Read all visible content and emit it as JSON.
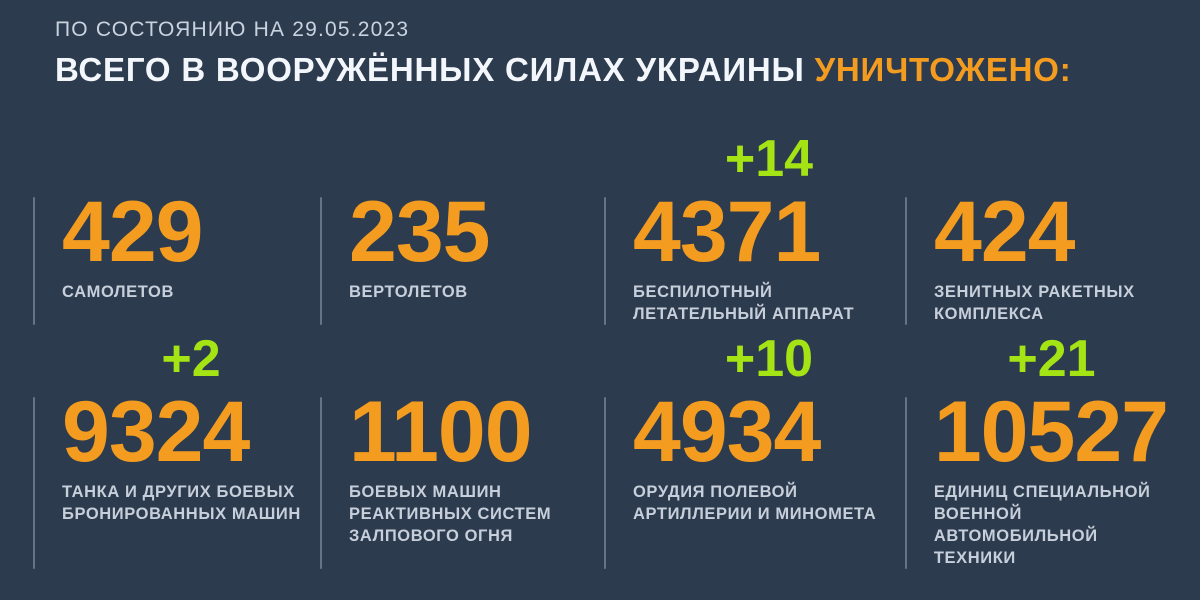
{
  "chart_data": {
    "type": "table",
    "title": "ВСЕГО В ВООРУЖЁННЫХ СИЛАХ УКРАИНЫ УНИЧТОЖЕНО:",
    "as_of_date": "29.05.2023",
    "categories": [
      "САМОЛЕТОВ",
      "ВЕРТОЛЕТОВ",
      "БЕСПИЛОТНЫЙ ЛЕТАТЕЛЬНЫЙ АППАРАТ",
      "ЗЕНИТНЫХ РАКЕТНЫХ КОМПЛЕКСА",
      "ТАНКА И ДРУГИХ БОЕВЫХ БРОНИРОВАННЫХ МАШИН",
      "БОЕВЫХ МАШИН РЕАКТИВНЫХ СИСТЕМ ЗАЛПОВОГО ОГНЯ",
      "ОРУДИЯ ПОЛЕВОЙ АРТИЛЛЕРИИ И МИНОМЕТА",
      "ЕДИНИЦ СПЕЦИАЛЬНОЙ ВОЕННОЙ АВТОМОБИЛЬНОЙ ТЕХНИКИ"
    ],
    "values": [
      429,
      235,
      4371,
      424,
      9324,
      1100,
      4934,
      10527
    ],
    "daily_increments": [
      null,
      null,
      14,
      null,
      2,
      null,
      10,
      21
    ]
  },
  "header": {
    "date_line": "ПО СОСТОЯНИЮ НА 29.05.2023",
    "title_main": "ВСЕГО В ВООРУЖЁННЫХ СИЛАХ УКРАИНЫ ",
    "title_accent": "УНИЧТОЖЕНО:"
  },
  "colors": {
    "background": "#2D3B4F",
    "accent_orange": "#F39C1F",
    "accent_green": "#A4E314",
    "label": "#C6CFDA",
    "title": "#F3F7FB",
    "date": "#C9D3DF",
    "divider": "#BAC4D1"
  },
  "stats": [
    {
      "value": "429",
      "delta": "",
      "label_lines": [
        "САМОЛЕТОВ"
      ]
    },
    {
      "value": "235",
      "delta": "",
      "label_lines": [
        "ВЕРТОЛЕТОВ"
      ]
    },
    {
      "value": "4371",
      "delta": "+14",
      "label_lines": [
        "БЕСПИЛОТНЫЙ",
        "ЛЕТАТЕЛЬНЫЙ АППАРАТ"
      ]
    },
    {
      "value": "424",
      "delta": "",
      "label_lines": [
        "ЗЕНИТНЫХ РАКЕТНЫХ",
        "КОМПЛЕКСА"
      ]
    },
    {
      "value": "9324",
      "delta": "+2",
      "label_lines": [
        "ТАНКА И ДРУГИХ БОЕВЫХ",
        "БРОНИРОВАННЫХ МАШИН"
      ]
    },
    {
      "value": "1100",
      "delta": "",
      "label_lines": [
        "БОЕВЫХ МАШИН",
        "РЕАКТИВНЫХ СИСТЕМ",
        "ЗАЛПОВОГО ОГНЯ"
      ]
    },
    {
      "value": "4934",
      "delta": "+10",
      "label_lines": [
        "ОРУДИЯ ПОЛЕВОЙ",
        "АРТИЛЛЕРИИ И МИНОМЕТА"
      ]
    },
    {
      "value": "10527",
      "delta": "+21",
      "label_lines": [
        "ЕДИНИЦ СПЕЦИАЛЬНОЙ",
        "ВОЕННОЙ АВТОМОБИЛЬНОЙ",
        "ТЕХНИКИ"
      ]
    }
  ]
}
